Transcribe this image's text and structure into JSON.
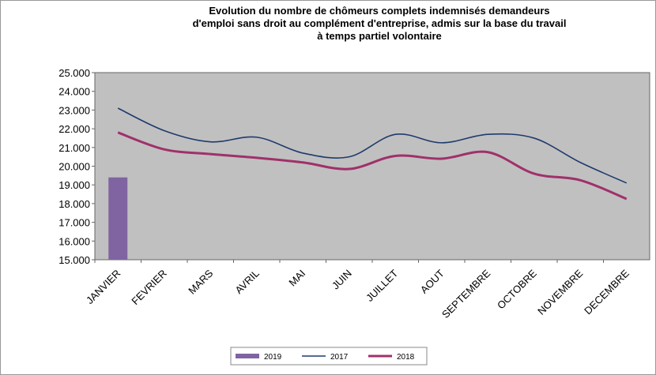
{
  "chart_data": {
    "type": "line",
    "title": [
      "Evolution du nombre de chômeurs complets indemnisés demandeurs",
      "d'emploi sans droit au complément d'entreprise, admis sur la base du travail",
      "à temps partiel volontaire"
    ],
    "categories": [
      "JANVIER",
      "FEVRIER",
      "MARS",
      "AVRIL",
      "MAI",
      "JUIN",
      "JUILLET",
      "AOUT",
      "SEPTEMBRE",
      "OCTOBRE",
      "NOVEMBRE",
      "DECEMBRE"
    ],
    "series": [
      {
        "name": "2019",
        "type": "bar",
        "color": "#8064a2",
        "values": [
          19400,
          null,
          null,
          null,
          null,
          null,
          null,
          null,
          null,
          null,
          null,
          null
        ]
      },
      {
        "name": "2017",
        "type": "line",
        "color": "#1f3a6e",
        "values": [
          23100,
          21900,
          21300,
          21550,
          20700,
          20500,
          21700,
          21250,
          21700,
          21500,
          20200,
          19100
        ]
      },
      {
        "name": "2018",
        "type": "line",
        "color": "#a0306a",
        "values": [
          21800,
          20900,
          20650,
          20450,
          20200,
          19850,
          20550,
          20400,
          20750,
          19600,
          19250,
          18250
        ]
      }
    ],
    "ylim": [
      15000,
      25000
    ],
    "yticks": [
      {
        "value": 15000,
        "label": "15.000"
      },
      {
        "value": 16000,
        "label": "16.000"
      },
      {
        "value": 17000,
        "label": "17.000"
      },
      {
        "value": 18000,
        "label": "18.000"
      },
      {
        "value": 19000,
        "label": "19.000"
      },
      {
        "value": 20000,
        "label": "20.000"
      },
      {
        "value": 21000,
        "label": "21.000"
      },
      {
        "value": 22000,
        "label": "22.000"
      },
      {
        "value": 23000,
        "label": "23.000"
      },
      {
        "value": 24000,
        "label": "24.000"
      },
      {
        "value": 25000,
        "label": "25.000"
      }
    ],
    "grid": false,
    "legend": "bottom"
  }
}
